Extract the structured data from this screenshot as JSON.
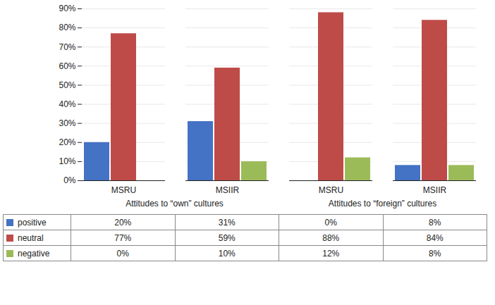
{
  "chart_data": {
    "type": "bar",
    "categories": [
      "MSRU",
      "MSIIR",
      "MSRU",
      "MSIIR"
    ],
    "annotations": [
      "Attitudes to “own”  cultures",
      "Attitudes to “foreign”  cultures"
    ],
    "series": [
      {
        "name": "positive",
        "color": "#4472C4",
        "values": [
          20,
          31,
          0,
          8
        ],
        "value_labels": [
          "20%",
          "31%",
          "0%",
          "8%"
        ]
      },
      {
        "name": "neutral",
        "color": "#BE4B48",
        "values": [
          77,
          59,
          88,
          84
        ],
        "value_labels": [
          "77%",
          "59%",
          "88%",
          "84%"
        ]
      },
      {
        "name": "negative",
        "color": "#9BBB59",
        "values": [
          0,
          10,
          12,
          8
        ],
        "value_labels": [
          "0%",
          "10%",
          "12%",
          "8%"
        ]
      }
    ],
    "ylim": [
      0,
      90
    ],
    "yticks": [
      {
        "value": 0,
        "label": "0%"
      },
      {
        "value": 10,
        "label": "10%"
      },
      {
        "value": 20,
        "label": "20%"
      },
      {
        "value": 30,
        "label": "30%"
      },
      {
        "value": 40,
        "label": "40%"
      },
      {
        "value": 50,
        "label": "50%"
      },
      {
        "value": 60,
        "label": "60%"
      },
      {
        "value": 70,
        "label": "70%"
      },
      {
        "value": 80,
        "label": "80%"
      },
      {
        "value": 90,
        "label": "90%"
      }
    ],
    "grid": true,
    "legend": "bottom"
  }
}
